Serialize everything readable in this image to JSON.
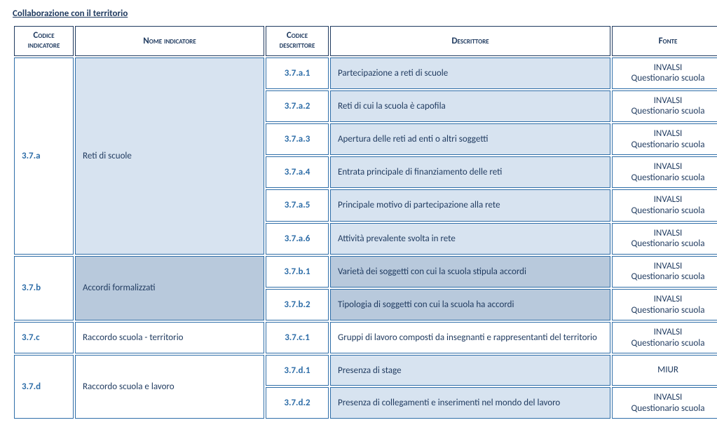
{
  "title": "Collaborazione con il territorio",
  "headers": {
    "codice_indicatore": "Codice indicatore",
    "nome_indicatore": "Nome indicatore",
    "codice_descrittore": "Codice descrittore",
    "descrittore": "Descrittore",
    "fonte": "Fonte"
  },
  "fonte_labels": {
    "invalsi": "INVALSI",
    "quest": "Questionario scuola",
    "miur": "MIUR"
  },
  "groups": [
    {
      "code": "3.7.a",
      "name": "Reti di scuole",
      "name_class": "",
      "descr_class": "",
      "rows": [
        {
          "code": "3.7.a.1",
          "descr": "Partecipazione a reti di scuole",
          "fonte": "invalsi_quest"
        },
        {
          "code": "3.7.a.2",
          "descr": "Reti di cui la scuola è capofila",
          "fonte": "invalsi_quest"
        },
        {
          "code": "3.7.a.3",
          "descr": "Apertura delle reti ad enti o altri soggetti",
          "fonte": "invalsi_quest"
        },
        {
          "code": "3.7.a.4",
          "descr": "Entrata principale di finanziamento delle reti",
          "fonte": "invalsi_quest"
        },
        {
          "code": "3.7.a.5",
          "descr": "Principale motivo di partecipazione alla rete",
          "fonte": "invalsi_quest"
        },
        {
          "code": "3.7.a.6",
          "descr": "Attività prevalente svolta in rete",
          "fonte": "invalsi_quest"
        }
      ]
    },
    {
      "code": "3.7.b",
      "name": "Accordi formalizzati",
      "name_class": "darker",
      "descr_class": "darker",
      "rows": [
        {
          "code": "3.7.b.1",
          "descr": "Varietà dei soggetti con cui la scuola stipula accordi",
          "fonte": "invalsi_quest"
        },
        {
          "code": "3.7.b.2",
          "descr": "Tipologia di soggetti con cui la scuola ha accordi",
          "fonte": "invalsi_quest"
        }
      ]
    },
    {
      "code": "3.7.c",
      "name": "Raccordo scuola - territorio",
      "name_class": "nome-white",
      "descr_class": "white",
      "rows": [
        {
          "code": "3.7.c.1",
          "descr": "Gruppi di lavoro composti da insegnanti e rappresentanti del territorio",
          "fonte": "invalsi_quest"
        }
      ]
    },
    {
      "code": "3.7.d",
      "name": "Raccordo scuola e lavoro",
      "name_class": "nome-white",
      "descr_class": "",
      "rows": [
        {
          "code": "3.7.d.1",
          "descr": "Presenza di stage",
          "fonte": "miur"
        },
        {
          "code": "3.7.d.2",
          "descr": "Presenza di collegamenti e inserimenti nel mondo del lavoro",
          "fonte": "invalsi_quest"
        }
      ]
    }
  ]
}
